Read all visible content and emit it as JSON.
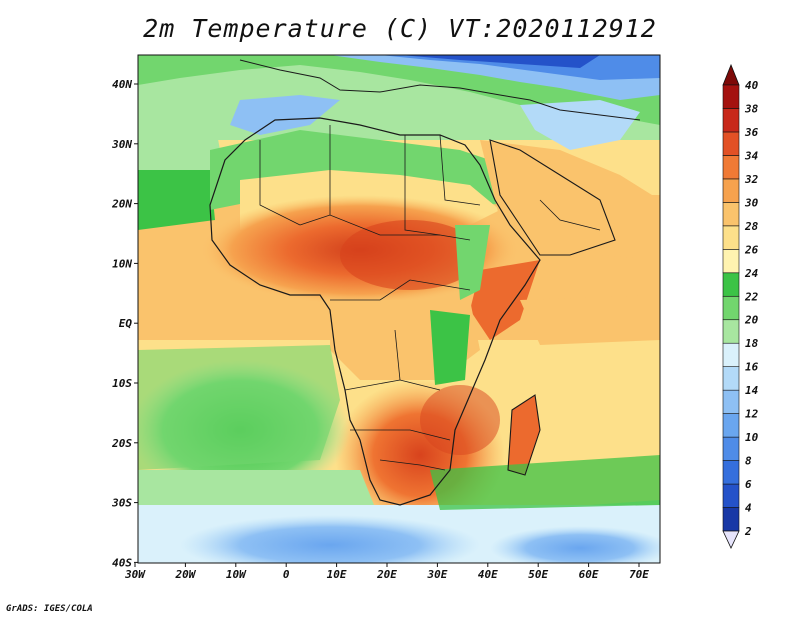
{
  "map": {
    "title": "2m Temperature (C) VT:2020112912",
    "footer": "GrADS: IGES/COLA",
    "longitude_labels": [
      "30W",
      "20W",
      "10W",
      "0",
      "10E",
      "20E",
      "30E",
      "40E",
      "50E",
      "60E",
      "70E"
    ],
    "latitude_labels": [
      "40N",
      "30N",
      "20N",
      "10N",
      "EQ",
      "10S",
      "20S",
      "30S",
      "40S"
    ],
    "colorbar": {
      "levels": [
        "2",
        "4",
        "6",
        "8",
        "10",
        "12",
        "14",
        "16",
        "18",
        "20",
        "22",
        "24",
        "26",
        "28",
        "30",
        "32",
        "34",
        "36",
        "38",
        "40"
      ],
      "colors": [
        "#0d1f7a",
        "#1838a6",
        "#2452c9",
        "#356fdd",
        "#4f8ce8",
        "#6aa6ef",
        "#8ec0f4",
        "#b3daf8",
        "#daf1fb",
        "#a8e6a0",
        "#72d66e",
        "#3cc346",
        "#fff3b0",
        "#fde08a",
        "#fac36c",
        "#f6a24e",
        "#f07a35",
        "#e25125",
        "#c8281a",
        "#a4120f",
        "#7d0a08"
      ]
    },
    "map_type": "filled temperature contour map with country borders",
    "region": "Africa and surrounding ocean, Middle East"
  }
}
